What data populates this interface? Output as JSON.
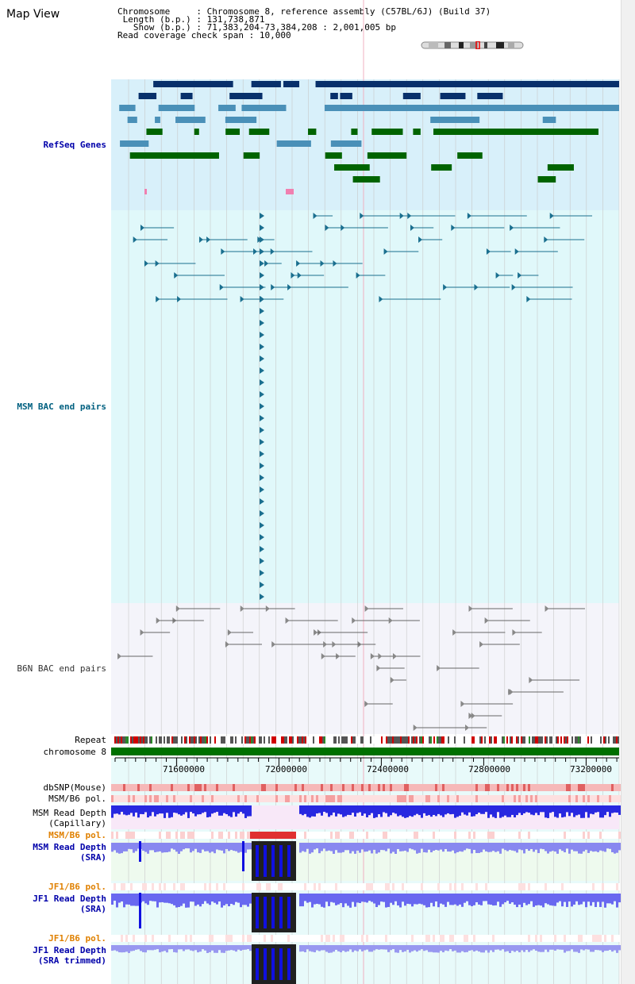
{
  "page": {
    "title": "Map View"
  },
  "info": {
    "chromosome_label": "Chromosome",
    "chromosome_value": "Chromosome 8, reference assembly (C57BL/6J) (Build 37)",
    "length_label": "Length (b.p.)",
    "length_value": "131,738,871",
    "show_label": "Show (b.p.)",
    "show_value": "71,383,204-73,384,208 : 2,001,005 bp",
    "coverage_label": "Read coverage check span",
    "coverage_value": "10,000"
  },
  "tracks": {
    "refseq": "RefSeq Genes",
    "msm_bac": "MSM BAC end pairs",
    "b6n_bac": "B6N BAC end pairs",
    "repeat": "Repeat",
    "chromosome": "chromosome 8",
    "dbsnp": "dbSNP(Mouse)",
    "msm_b6_pol_1": "MSM/B6 pol.",
    "msm_depth_cap_1": "MSM Read Depth",
    "msm_depth_cap_2": "(Capillary)",
    "msm_b6_pol_2": "MSM/B6 pol.",
    "msm_depth_sra_1": "MSM Read Depth",
    "msm_depth_sra_2": "(SRA)",
    "jf1_b6_pol_1": "JF1/B6 pol.",
    "jf1_depth_sra_1": "JF1 Read Depth",
    "jf1_depth_sra_2": "(SRA)",
    "jf1_b6_pol_2": "JF1/B6 pol.",
    "jf1_depth_trim_1": "JF1 Read Depth",
    "jf1_depth_trim_2": "(SRA trimmed)"
  },
  "axis": {
    "ticks": [
      "71600000",
      "72000000",
      "72400000",
      "72800000",
      "73200000"
    ]
  },
  "colors": {
    "refseq_label": "#0000aa",
    "msm_label": "#006080",
    "b6n_label": "#333333",
    "pol_label_orange": "#e08000",
    "depth_label_blue": "#0000aa",
    "refseq_bg": "#d8f0fa",
    "msm_bg": "#e0f8fa",
    "b6n_bg": "#f4f4fa",
    "chromosome_bar": "#007000",
    "gene_dark": "#08306b",
    "gene_mid": "#4a90b8",
    "gene_green": "#006400",
    "bac_teal": "#1a6f8f",
    "bac_gray": "#666666"
  }
}
